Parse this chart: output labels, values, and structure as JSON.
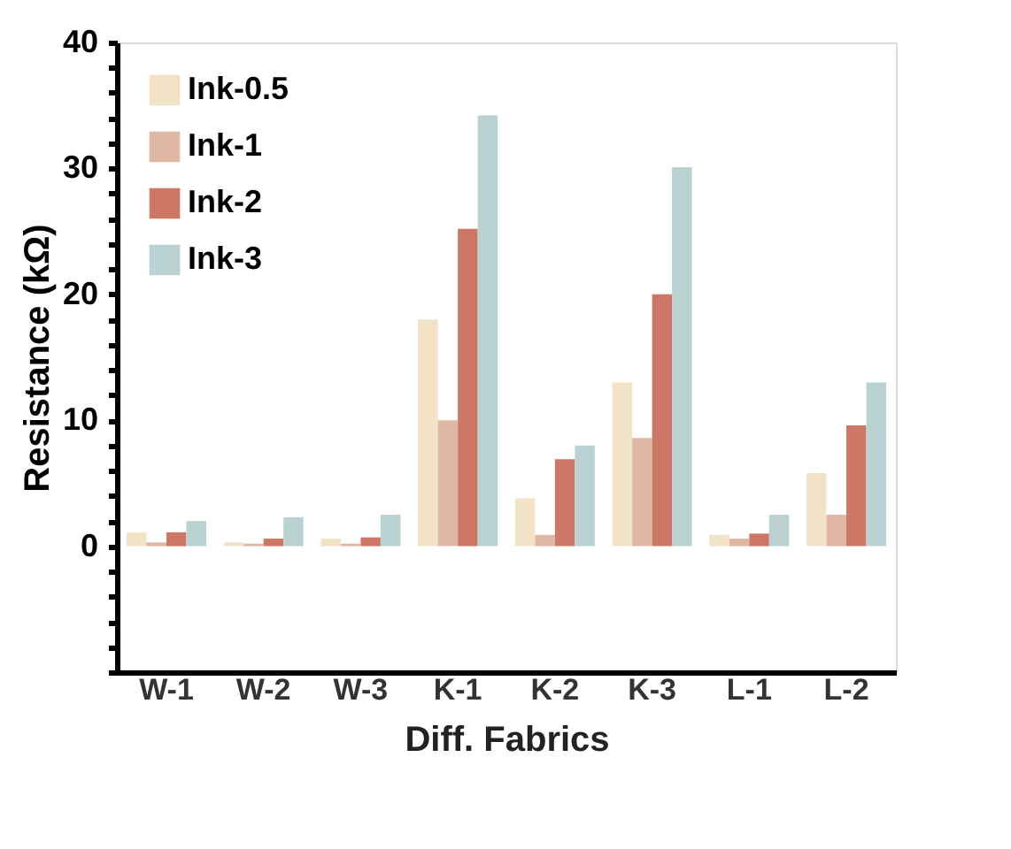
{
  "chart_data": {
    "type": "bar",
    "xlabel": "Diff. Fabrics",
    "ylabel": "Resistance (kΩ)",
    "categories": [
      "W-1",
      "W-2",
      "W-3",
      "K-1",
      "K-2",
      "K-3",
      "L-1",
      "L-2"
    ],
    "series": [
      {
        "name": "Ink-0.5",
        "color": "#f2e3c6",
        "values": [
          1.1,
          0.3,
          0.6,
          18,
          3.8,
          13,
          0.9,
          5.8
        ]
      },
      {
        "name": "Ink-1",
        "color": "#dfb7a4",
        "values": [
          0.3,
          0.2,
          0.2,
          10,
          0.9,
          8.6,
          0.6,
          2.5
        ]
      },
      {
        "name": "Ink-2",
        "color": "#cd7766",
        "values": [
          1.1,
          0.6,
          0.7,
          25.2,
          6.9,
          20,
          1.0,
          9.6
        ]
      },
      {
        "name": "Ink-3",
        "color": "#bad2d1",
        "values": [
          2.0,
          2.3,
          2.5,
          34.2,
          8.0,
          30.1,
          2.5,
          13
        ]
      }
    ],
    "ylim": [
      -10,
      40
    ],
    "yticks": [
      {
        "value": -10,
        "label": null
      },
      {
        "value": -8,
        "label": null
      },
      {
        "value": -6,
        "label": null
      },
      {
        "value": -4,
        "label": null
      },
      {
        "value": -2,
        "label": null
      },
      0,
      {
        "value": 2,
        "label": null
      },
      {
        "value": 4,
        "label": null
      },
      {
        "value": 6,
        "label": null
      },
      {
        "value": 8,
        "label": null
      },
      10,
      {
        "value": 12,
        "label": null
      },
      {
        "value": 14,
        "label": null
      },
      {
        "value": 16,
        "label": null
      },
      {
        "value": 18,
        "label": null
      },
      20,
      {
        "value": 22,
        "label": null
      },
      {
        "value": 24,
        "label": null
      },
      {
        "value": 26,
        "label": null
      },
      {
        "value": 28,
        "label": null
      },
      30,
      {
        "value": 32,
        "label": null
      },
      {
        "value": 34,
        "label": null
      },
      {
        "value": 36,
        "label": null
      },
      {
        "value": 38,
        "label": null
      },
      40
    ],
    "legend": "top left",
    "grid": false
  }
}
